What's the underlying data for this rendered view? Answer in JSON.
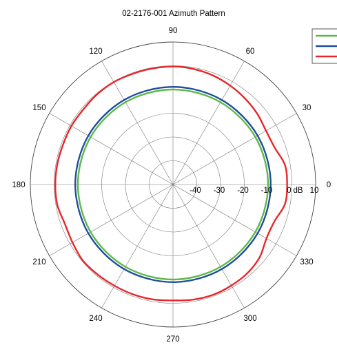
{
  "chart_data": {
    "type": "polar-line",
    "title": "02-2176-001 Azimuth Pattern",
    "radial_unit": "dB",
    "radial_range": [
      -50,
      10
    ],
    "radial_ticks": [
      -40,
      -30,
      -20,
      -10,
      0,
      10
    ],
    "radial_tick_labels": [
      "-40",
      "-30",
      "-20",
      "-10",
      "0",
      "10"
    ],
    "angle_ticks": [
      0,
      30,
      60,
      90,
      120,
      150,
      180,
      210,
      240,
      270,
      300,
      330
    ],
    "angle_tick_labels": [
      "0",
      "30",
      "60",
      "90",
      "120",
      "150",
      "180",
      "210",
      "240",
      "270",
      "300",
      "330"
    ],
    "grid": true,
    "legend": {
      "position": "top-right",
      "labels_visible": false
    },
    "series": [
      {
        "color": "#5cb848",
        "angles": [
          0,
          30,
          60,
          90,
          120,
          150,
          180,
          210,
          240,
          270,
          300,
          330
        ],
        "values": [
          -10,
          -10,
          -10,
          -10,
          -10,
          -10,
          -10,
          -10,
          -10,
          -10,
          -10,
          -10
        ]
      },
      {
        "color": "#1f4e9c",
        "angles": [
          0,
          30,
          60,
          90,
          120,
          150,
          180,
          210,
          240,
          270,
          300,
          330
        ],
        "values": [
          -8.9,
          -8.9,
          -8.9,
          -8.9,
          -8.9,
          -8.9,
          -8.9,
          -8.9,
          -8.9,
          -8.9,
          -8.9,
          -8.9
        ]
      },
      {
        "color": "#e8262a",
        "angles": [
          0,
          10,
          20,
          30,
          40,
          50,
          60,
          70,
          80,
          90,
          100,
          110,
          120,
          130,
          140,
          150,
          160,
          170,
          180,
          190,
          200,
          210,
          220,
          230,
          240,
          250,
          260,
          270,
          280,
          290,
          300,
          310,
          320,
          330,
          340,
          350
        ],
        "values": [
          -2,
          -2.2,
          -4.5,
          -4.8,
          -3.7,
          -2.8,
          -1.9,
          -1.1,
          -0.6,
          -0.3,
          -0.4,
          -0.4,
          -0.2,
          -0.4,
          -0.8,
          -0.7,
          -0.8,
          -0.6,
          -0.5,
          -0.6,
          -1.6,
          -1.2,
          -0.4,
          -0.6,
          -0.8,
          -0.8,
          -0.9,
          -1.2,
          -0.8,
          -0.6,
          -0.9,
          -1.3,
          -2.4,
          -4.6,
          -4.6,
          -2.2
        ]
      }
    ]
  }
}
